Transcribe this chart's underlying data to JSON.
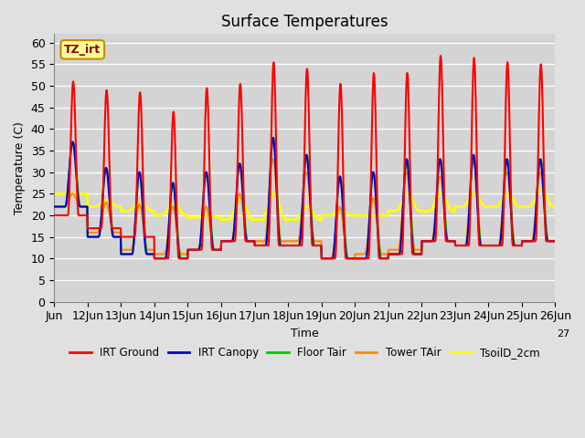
{
  "title": "Surface Temperatures",
  "xlabel": "Time",
  "ylabel": "Temperature (C)",
  "ylim": [
    0,
    62
  ],
  "yticks": [
    0,
    5,
    10,
    15,
    20,
    25,
    30,
    35,
    40,
    45,
    50,
    55,
    60
  ],
  "bg_color": "#e0e0e0",
  "plot_bg_color": "#d4d4d4",
  "series": {
    "IRT Ground": {
      "color": "#ff0000",
      "lw": 1.5
    },
    "IRT Canopy": {
      "color": "#0000cc",
      "lw": 1.5
    },
    "Floor Tair": {
      "color": "#00cc00",
      "lw": 1.5
    },
    "Tower TAir": {
      "color": "#ff8800",
      "lw": 1.5
    },
    "TsoilD_2cm": {
      "color": "#ffff00",
      "lw": 2.0
    }
  },
  "tz_label": "TZ_irt",
  "tz_bg": "#ffff99",
  "tz_border": "#cc8800",
  "num_points": 1500,
  "irt_ground_peaks": [
    51,
    49,
    48.5,
    44,
    49.5,
    50.5,
    55.5,
    54,
    50.5,
    53,
    53,
    57,
    56.5,
    55.5,
    55
  ],
  "irt_ground_nights": [
    20,
    17,
    15,
    10,
    12,
    14,
    13,
    13,
    10,
    10,
    11,
    14,
    13,
    13,
    14
  ],
  "canopy_peaks": [
    37,
    31,
    30,
    27.5,
    30,
    32,
    38,
    34,
    29,
    30,
    33,
    33,
    34,
    33,
    33
  ],
  "canopy_nights": [
    22,
    15,
    11,
    10,
    12,
    14,
    13,
    13,
    10,
    10,
    11,
    14,
    13,
    13,
    14
  ],
  "floor_peaks": [
    37,
    31,
    30,
    27.5,
    30,
    32,
    38,
    34,
    29,
    30,
    33,
    33,
    34,
    33,
    33
  ],
  "floor_nights": [
    22,
    15,
    11,
    10,
    12,
    14,
    13,
    13,
    10,
    10,
    11,
    14,
    13,
    13,
    14
  ],
  "tower_peaks": [
    25,
    23,
    22.5,
    22,
    22,
    25,
    33,
    30,
    22,
    24,
    30,
    29,
    33,
    30,
    30
  ],
  "tower_nights": [
    22,
    16,
    12,
    11,
    12,
    14,
    14,
    14,
    10,
    11,
    12,
    14,
    13,
    13,
    14
  ],
  "soil_peaks": [
    25,
    23.5,
    23,
    23,
    20,
    24,
    25,
    22,
    21,
    20,
    25,
    25,
    25,
    25,
    26
  ],
  "soil_nights": [
    25,
    22,
    21,
    20,
    19.5,
    19,
    19,
    19,
    20,
    20,
    21,
    21,
    22,
    22,
    22
  ],
  "x_tick_positions": [
    0,
    1,
    2,
    3,
    4,
    5,
    6,
    7,
    8,
    9,
    10,
    11,
    12,
    13,
    14,
    15
  ],
  "x_tick_labels": [
    "Jun",
    "12Jun",
    "13Jun",
    "14Jun",
    "15Jun",
    "16Jun",
    "17Jun",
    "18Jun",
    "19Jun",
    "20Jun",
    "21Jun",
    "22Jun",
    "23Jun",
    "24Jun",
    "25Jun",
    "26Jun"
  ],
  "legend_labels": [
    "IRT Ground",
    "IRT Canopy",
    "Floor Tair",
    "Tower TAir",
    "TsoilD_2cm"
  ],
  "legend_colors": [
    "#ff0000",
    "#0000cc",
    "#00cc00",
    "#ff8800",
    "#ffff00"
  ]
}
